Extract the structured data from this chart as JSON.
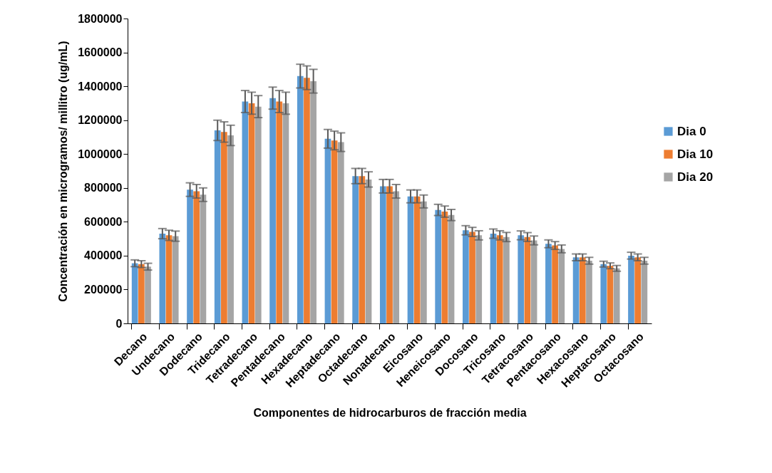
{
  "chart_data": {
    "type": "bar",
    "xlabel": "Componentes de hidrocarburos de fracción media",
    "ylabel": "Concentración en microgramos/ millitro (ug/mL)",
    "categories": [
      "Decano",
      "Undecano",
      "Dodecano",
      "Tridecano",
      "Tetradecano",
      "Pentadecano",
      "Hexadecano",
      "Heptadecano",
      "Octadecano",
      "Nonadecano",
      "Eicosano",
      "Heneicosano",
      "Docosano",
      "Tricosano",
      "Tetracosano",
      "Pentacosano",
      "Hexacosano",
      "Heptacosano",
      "Octacosano"
    ],
    "series": [
      {
        "name": "Dia 0",
        "color": "#5b9bd5",
        "values": [
          355000,
          530000,
          790000,
          1140000,
          1310000,
          1330000,
          1460000,
          1090000,
          870000,
          810000,
          750000,
          670000,
          550000,
          530000,
          520000,
          470000,
          390000,
          350000,
          400000
        ],
        "errors": [
          20000,
          30000,
          40000,
          60000,
          65000,
          65000,
          70000,
          55000,
          45000,
          40000,
          38000,
          33000,
          27000,
          27000,
          26000,
          23000,
          20000,
          17000,
          20000
        ]
      },
      {
        "name": "Dia 10",
        "color": "#ed7d31",
        "values": [
          350000,
          520000,
          780000,
          1130000,
          1300000,
          1310000,
          1450000,
          1080000,
          870000,
          810000,
          750000,
          660000,
          540000,
          520000,
          510000,
          460000,
          390000,
          340000,
          390000
        ],
        "errors": [
          20000,
          30000,
          40000,
          60000,
          65000,
          65000,
          70000,
          55000,
          45000,
          40000,
          38000,
          33000,
          27000,
          27000,
          26000,
          23000,
          20000,
          17000,
          20000
        ]
      },
      {
        "name": "Dia 20",
        "color": "#a5a5a5",
        "values": [
          335000,
          515000,
          760000,
          1110000,
          1280000,
          1300000,
          1430000,
          1070000,
          850000,
          780000,
          720000,
          640000,
          520000,
          510000,
          490000,
          440000,
          370000,
          325000,
          370000
        ],
        "errors": [
          20000,
          30000,
          40000,
          60000,
          65000,
          65000,
          70000,
          55000,
          45000,
          40000,
          38000,
          33000,
          27000,
          27000,
          26000,
          23000,
          20000,
          17000,
          20000
        ]
      }
    ],
    "ylim": [
      0,
      1800000
    ],
    "yticks": [
      0,
      200000,
      400000,
      600000,
      800000,
      1000000,
      1200000,
      1400000,
      1600000,
      1800000
    ],
    "legend": "right"
  }
}
